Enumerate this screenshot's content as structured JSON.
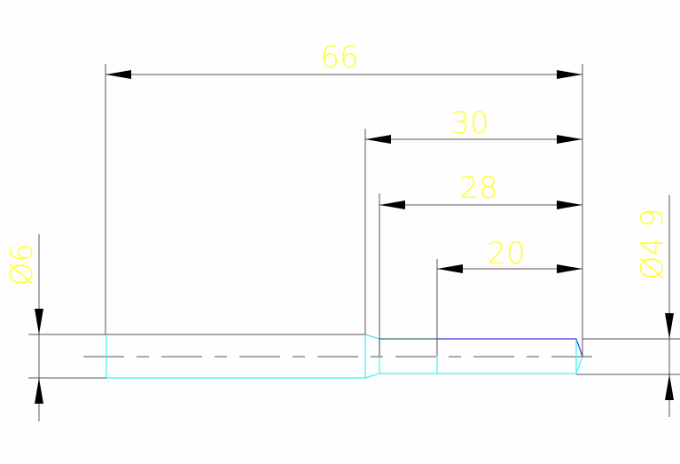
{
  "drawing": {
    "dimensions": {
      "overall_length": "66",
      "length_30": "30",
      "length_28": "28",
      "length_20": "20",
      "diameter_left": "Ø6",
      "diameter_right": "Ø4.9"
    },
    "colors": {
      "dimension_text": "#ffff33",
      "outline": "#3ff5f5",
      "lines": "#555555",
      "edge": "#4433dd"
    }
  }
}
